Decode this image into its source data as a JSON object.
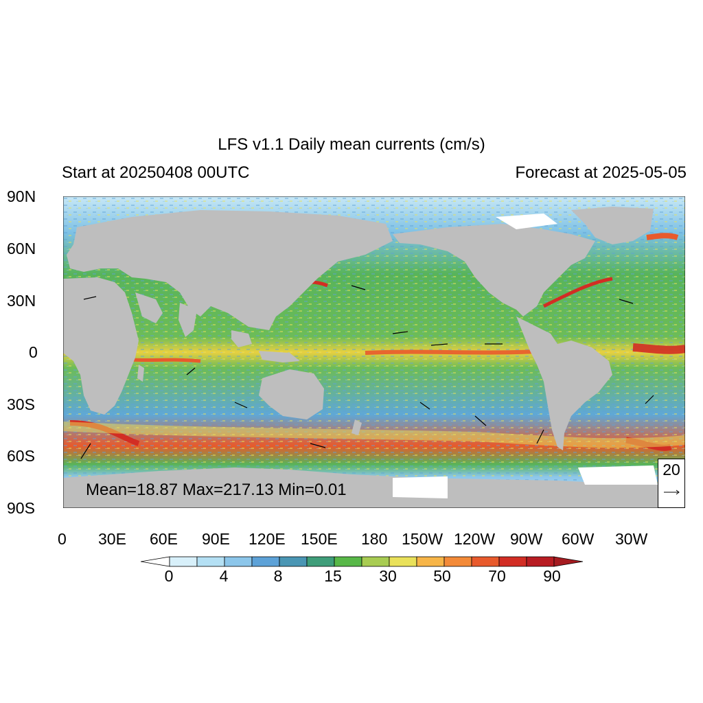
{
  "title": "LFS v1.1 Daily mean currents (cm/s)",
  "start_label": "Start at 20250408 00UTC",
  "forecast_label": "Forecast at 2025-05-05",
  "stats": "Mean=18.87  Max=217.13  Min=0.01",
  "reference_vector": {
    "value": "20",
    "arrow": "→"
  },
  "lat_labels": [
    "90N",
    "60N",
    "30N",
    "0",
    "30S",
    "60S",
    "90S"
  ],
  "lon_labels": [
    "0",
    "30E",
    "60E",
    "90E",
    "120E",
    "150E",
    "180",
    "150W",
    "120W",
    "90W",
    "60W",
    "30W"
  ],
  "colorbar": {
    "labels": [
      "0",
      "4",
      "8",
      "15",
      "30",
      "50",
      "70",
      "90"
    ],
    "colors": [
      "#d8f0fa",
      "#b4e0f4",
      "#8cc6ea",
      "#5da2d8",
      "#4a96b4",
      "#3f9e7a",
      "#58b848",
      "#a8cc52",
      "#e9e15a",
      "#f7b548",
      "#f38a38",
      "#e85a2c",
      "#d22d24",
      "#b81c22"
    ],
    "under_color": "#ffffff",
    "over_color": "#a51b20"
  },
  "colors": {
    "land": "#bebebe",
    "ice": "#ffffff",
    "ocean_low": "#a8d8f0",
    "ocean_mid": "#5ab45a",
    "ocean_high": "#e04028"
  }
}
